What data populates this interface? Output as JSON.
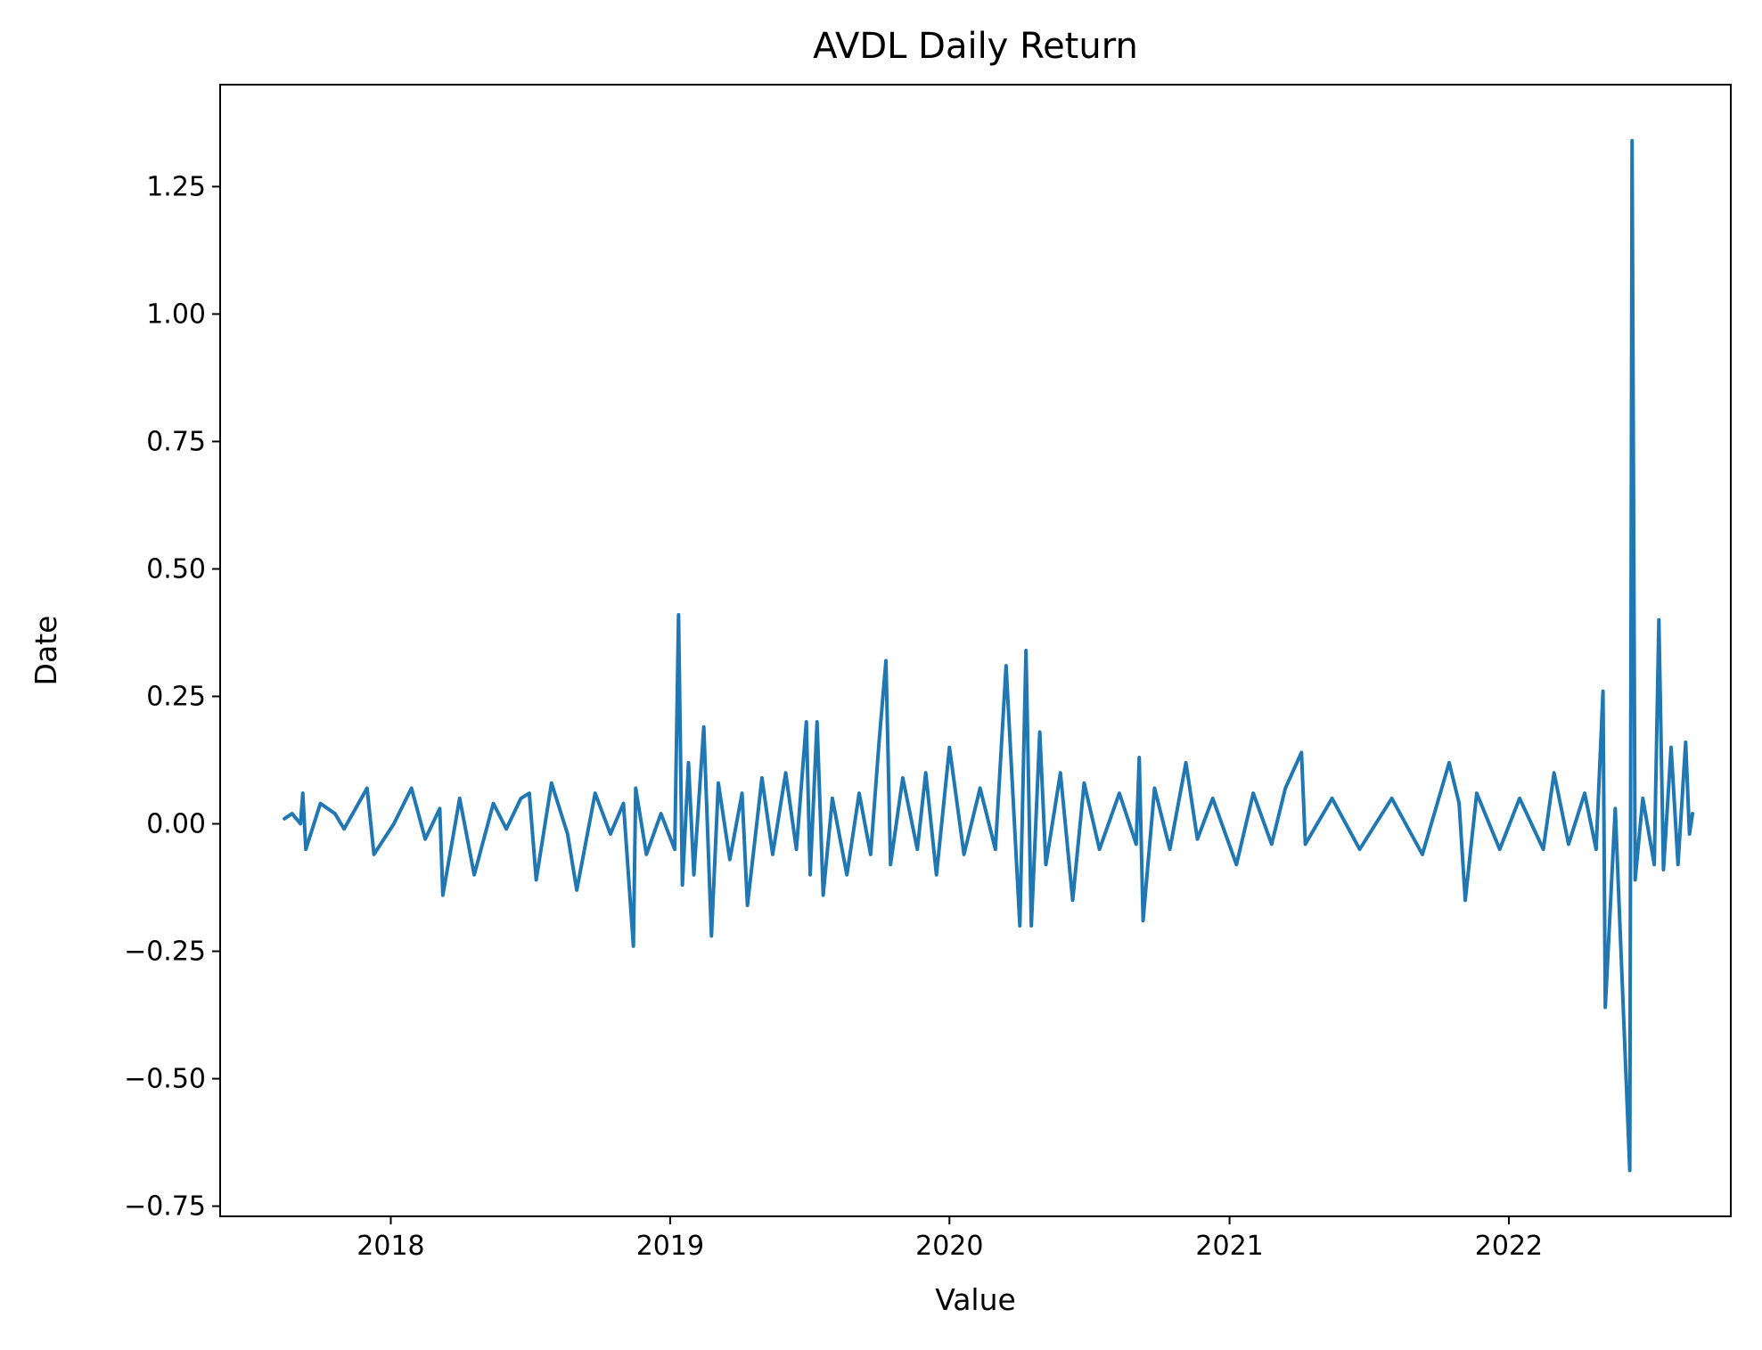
{
  "chart_data": {
    "type": "line",
    "title": "AVDL Daily Return",
    "xlabel": "Value",
    "ylabel": "Date",
    "x_ticks": [
      "2018",
      "2019",
      "2020",
      "2021",
      "2022"
    ],
    "y_ticks": [
      "−0.75",
      "−0.50",
      "−0.25",
      "0.00",
      "0.25",
      "0.50",
      "0.75",
      "1.00",
      "1.25"
    ],
    "xlim": [
      "2017-05-23",
      "2022-10-18"
    ],
    "ylim": [
      -0.77,
      1.45
    ],
    "grid": false,
    "legend": "none",
    "line_color": "#1f77b4",
    "series": [
      {
        "values": [
          [
            "2017-08-15",
            0.01
          ],
          [
            "2017-08-25",
            0.02
          ],
          [
            "2017-09-05",
            0.0
          ],
          [
            "2017-09-08",
            0.06
          ],
          [
            "2017-09-12",
            -0.05
          ],
          [
            "2017-10-01",
            0.04
          ],
          [
            "2017-10-20",
            0.02
          ],
          [
            "2017-11-01",
            -0.01
          ],
          [
            "2017-12-01",
            0.07
          ],
          [
            "2017-12-10",
            -0.06
          ],
          [
            "2018-01-05",
            0.0
          ],
          [
            "2018-01-28",
            0.07
          ],
          [
            "2018-02-15",
            -0.03
          ],
          [
            "2018-03-06",
            0.03
          ],
          [
            "2018-03-10",
            -0.14
          ],
          [
            "2018-04-01",
            0.05
          ],
          [
            "2018-04-20",
            -0.1
          ],
          [
            "2018-05-15",
            0.04
          ],
          [
            "2018-06-01",
            -0.01
          ],
          [
            "2018-06-20",
            0.05
          ],
          [
            "2018-07-01",
            0.06
          ],
          [
            "2018-07-10",
            -0.11
          ],
          [
            "2018-07-30",
            0.08
          ],
          [
            "2018-08-20",
            -0.02
          ],
          [
            "2018-09-01",
            -0.13
          ],
          [
            "2018-09-25",
            0.06
          ],
          [
            "2018-10-15",
            -0.02
          ],
          [
            "2018-11-01",
            0.04
          ],
          [
            "2018-11-14",
            -0.24
          ],
          [
            "2018-11-17",
            0.07
          ],
          [
            "2018-12-01",
            -0.06
          ],
          [
            "2018-12-20",
            0.02
          ],
          [
            "2019-01-07",
            -0.05
          ],
          [
            "2019-01-12",
            0.41
          ],
          [
            "2019-01-17",
            -0.12
          ],
          [
            "2019-01-25",
            0.12
          ],
          [
            "2019-02-01",
            -0.1
          ],
          [
            "2019-02-14",
            0.19
          ],
          [
            "2019-02-24",
            -0.22
          ],
          [
            "2019-03-05",
            0.08
          ],
          [
            "2019-03-20",
            -0.07
          ],
          [
            "2019-04-05",
            0.06
          ],
          [
            "2019-04-12",
            -0.16
          ],
          [
            "2019-05-01",
            0.09
          ],
          [
            "2019-05-15",
            -0.06
          ],
          [
            "2019-06-01",
            0.1
          ],
          [
            "2019-06-15",
            -0.05
          ],
          [
            "2019-06-28",
            0.2
          ],
          [
            "2019-07-03",
            -0.1
          ],
          [
            "2019-07-12",
            0.2
          ],
          [
            "2019-07-20",
            -0.14
          ],
          [
            "2019-08-01",
            0.05
          ],
          [
            "2019-08-20",
            -0.1
          ],
          [
            "2019-09-05",
            0.06
          ],
          [
            "2019-09-20",
            -0.06
          ],
          [
            "2019-10-01",
            0.16
          ],
          [
            "2019-10-10",
            0.32
          ],
          [
            "2019-10-16",
            -0.08
          ],
          [
            "2019-11-01",
            0.09
          ],
          [
            "2019-11-20",
            -0.05
          ],
          [
            "2019-12-01",
            0.1
          ],
          [
            "2019-12-15",
            -0.1
          ],
          [
            "2020-01-01",
            0.15
          ],
          [
            "2020-01-20",
            -0.06
          ],
          [
            "2020-02-10",
            0.07
          ],
          [
            "2020-03-01",
            -0.05
          ],
          [
            "2020-03-15",
            0.31
          ],
          [
            "2020-04-02",
            -0.2
          ],
          [
            "2020-04-10",
            0.34
          ],
          [
            "2020-04-17",
            -0.2
          ],
          [
            "2020-04-28",
            0.18
          ],
          [
            "2020-05-06",
            -0.08
          ],
          [
            "2020-05-25",
            0.1
          ],
          [
            "2020-06-10",
            -0.15
          ],
          [
            "2020-06-25",
            0.08
          ],
          [
            "2020-07-15",
            -0.05
          ],
          [
            "2020-08-10",
            0.06
          ],
          [
            "2020-09-01",
            -0.04
          ],
          [
            "2020-09-05",
            0.13
          ],
          [
            "2020-09-10",
            -0.19
          ],
          [
            "2020-09-25",
            0.07
          ],
          [
            "2020-10-15",
            -0.05
          ],
          [
            "2020-11-05",
            0.12
          ],
          [
            "2020-11-20",
            -0.03
          ],
          [
            "2020-12-10",
            0.05
          ],
          [
            "2021-01-10",
            -0.08
          ],
          [
            "2021-02-01",
            0.06
          ],
          [
            "2021-02-25",
            -0.04
          ],
          [
            "2021-03-15",
            0.07
          ],
          [
            "2021-04-05",
            0.14
          ],
          [
            "2021-04-10",
            -0.04
          ],
          [
            "2021-05-15",
            0.05
          ],
          [
            "2021-06-20",
            -0.05
          ],
          [
            "2021-08-01",
            0.05
          ],
          [
            "2021-09-10",
            -0.06
          ],
          [
            "2021-10-15",
            0.12
          ],
          [
            "2021-10-28",
            0.04
          ],
          [
            "2021-11-05",
            -0.15
          ],
          [
            "2021-11-20",
            0.06
          ],
          [
            "2021-12-20",
            -0.05
          ],
          [
            "2022-01-15",
            0.05
          ],
          [
            "2022-02-15",
            -0.05
          ],
          [
            "2022-03-01",
            0.1
          ],
          [
            "2022-03-20",
            -0.04
          ],
          [
            "2022-04-10",
            0.06
          ],
          [
            "2022-04-25",
            -0.05
          ],
          [
            "2022-05-04",
            0.26
          ],
          [
            "2022-05-07",
            -0.36
          ],
          [
            "2022-05-20",
            0.03
          ],
          [
            "2022-06-08",
            -0.68
          ],
          [
            "2022-06-11",
            1.34
          ],
          [
            "2022-06-15",
            -0.11
          ],
          [
            "2022-06-25",
            0.05
          ],
          [
            "2022-07-10",
            -0.08
          ],
          [
            "2022-07-16",
            0.4
          ],
          [
            "2022-07-22",
            -0.09
          ],
          [
            "2022-08-01",
            0.15
          ],
          [
            "2022-08-10",
            -0.08
          ],
          [
            "2022-08-20",
            0.16
          ],
          [
            "2022-08-25",
            -0.02
          ],
          [
            "2022-08-29",
            0.02
          ]
        ]
      }
    ]
  }
}
